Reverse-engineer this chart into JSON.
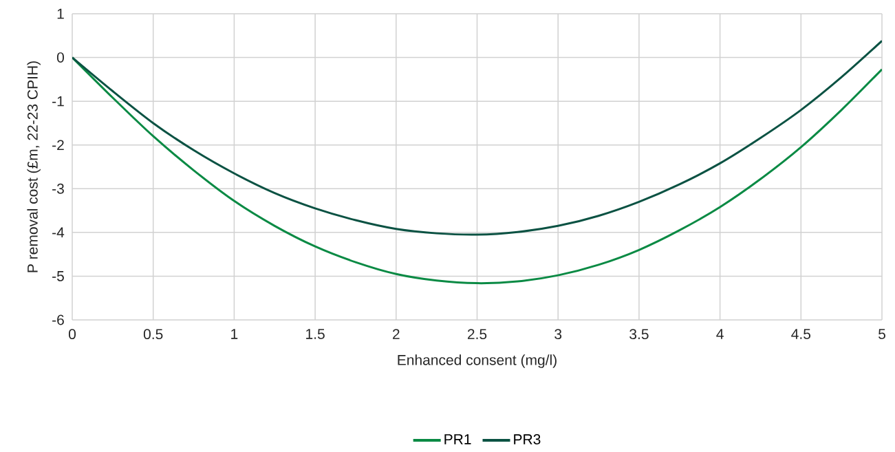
{
  "chart_data": {
    "type": "line",
    "xlabel": "Enhanced consent (mg/l)",
    "ylabel": "P removal cost (£m, 22-23 CPIH)",
    "x": [
      0,
      0.25,
      0.5,
      0.75,
      1,
      1.25,
      1.5,
      1.75,
      2,
      2.25,
      2.5,
      2.75,
      3,
      3.25,
      3.5,
      3.75,
      4,
      4.25,
      4.5,
      4.75,
      5
    ],
    "series": [
      {
        "name": "PR1",
        "color": "#0a8a44",
        "values": [
          0,
          -0.92,
          -1.8,
          -2.58,
          -3.28,
          -3.85,
          -4.32,
          -4.68,
          -4.95,
          -5.1,
          -5.16,
          -5.12,
          -4.98,
          -4.74,
          -4.4,
          -3.95,
          -3.42,
          -2.78,
          -2.05,
          -1.2,
          -0.27
        ]
      },
      {
        "name": "PR3",
        "color": "#0b5243",
        "values": [
          0,
          -0.77,
          -1.5,
          -2.12,
          -2.65,
          -3.1,
          -3.45,
          -3.72,
          -3.92,
          -4.02,
          -4.05,
          -3.99,
          -3.85,
          -3.62,
          -3.3,
          -2.9,
          -2.42,
          -1.84,
          -1.2,
          -0.45,
          0.38
        ]
      }
    ],
    "xlim": [
      0,
      5
    ],
    "ylim": [
      -6,
      1
    ],
    "xticks": [
      0,
      0.5,
      1,
      1.5,
      2,
      2.5,
      3,
      3.5,
      4,
      4.5,
      5
    ],
    "yticks": [
      -6,
      -5,
      -4,
      -3,
      -2,
      -1,
      0,
      1
    ],
    "grid": true,
    "legend": "bottom",
    "marker": "none",
    "line_style": "solid"
  }
}
